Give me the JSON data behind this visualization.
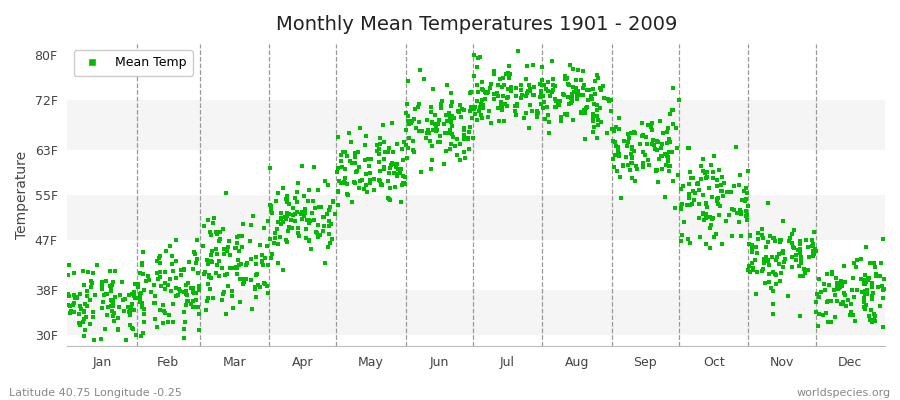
{
  "title": "Monthly Mean Temperatures 1901 - 2009",
  "ylabel": "Temperature",
  "xlabel_bottom_left": "Latitude 40.75 Longitude -0.25",
  "xlabel_bottom_right": "worldspecies.org",
  "yticks": [
    30,
    38,
    47,
    55,
    63,
    72,
    80
  ],
  "ytick_labels": [
    "30F",
    "38F",
    "47F",
    "55F",
    "63F",
    "72F",
    "80F"
  ],
  "ylim": [
    28,
    82
  ],
  "months": [
    "Jan",
    "Feb",
    "Mar",
    "Apr",
    "May",
    "Jun",
    "Jul",
    "Aug",
    "Sep",
    "Oct",
    "Nov",
    "Dec"
  ],
  "dot_color": "#00bb00",
  "legend_label": "Mean Temp",
  "background_color": "#ffffff",
  "plot_bg_color": "#ffffff",
  "band_color_light": "#f5f5f5",
  "band_color_white": "#ffffff",
  "dashed_line_color": "#999999",
  "n_years": 109,
  "monthly_mean": [
    36.0,
    37.5,
    43.0,
    51.0,
    59.0,
    67.0,
    73.0,
    72.0,
    63.0,
    54.0,
    44.0,
    38.0
  ],
  "monthly_std": [
    3.5,
    4.0,
    4.0,
    3.5,
    3.5,
    3.5,
    3.0,
    3.0,
    3.5,
    3.5,
    3.5,
    3.5
  ],
  "seed": 42,
  "month_days": [
    31,
    28,
    31,
    30,
    31,
    30,
    31,
    31,
    30,
    31,
    30,
    31
  ]
}
